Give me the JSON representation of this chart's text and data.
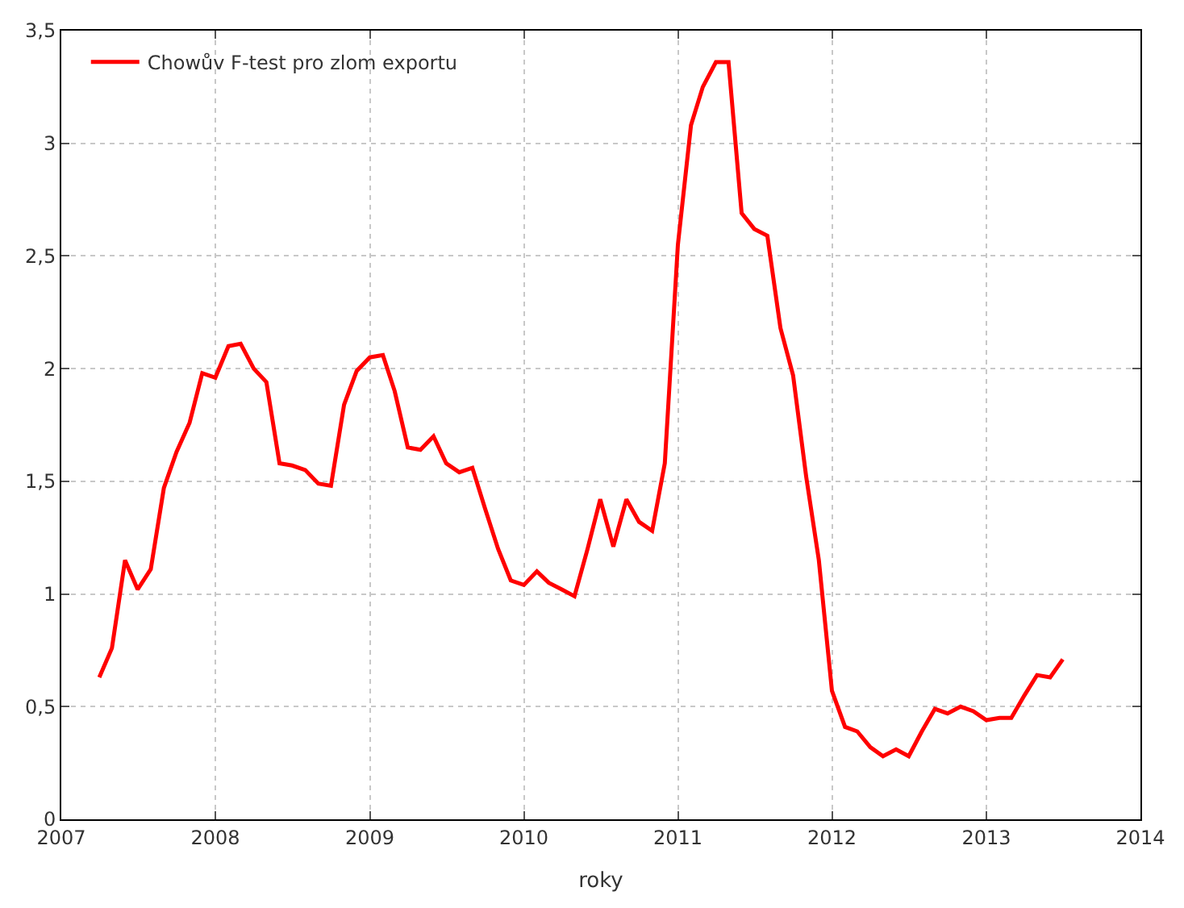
{
  "chart_data": {
    "type": "line",
    "xlabel": "roky",
    "x": [
      "2007-04",
      "2007-05",
      "2007-06",
      "2007-07",
      "2007-08",
      "2007-09",
      "2007-10",
      "2007-11",
      "2007-12",
      "2008-01",
      "2008-02",
      "2008-03",
      "2008-04",
      "2008-05",
      "2008-06",
      "2008-07",
      "2008-08",
      "2008-09",
      "2008-10",
      "2008-11",
      "2008-12",
      "2009-01",
      "2009-02",
      "2009-03",
      "2009-04",
      "2009-05",
      "2009-06",
      "2009-07",
      "2009-08",
      "2009-09",
      "2009-10",
      "2009-11",
      "2009-12",
      "2010-01",
      "2010-02",
      "2010-03",
      "2010-04",
      "2010-05",
      "2010-06",
      "2010-07",
      "2010-08",
      "2010-09",
      "2010-10",
      "2010-11",
      "2010-12",
      "2011-01",
      "2011-02",
      "2011-03",
      "2011-04",
      "2011-05",
      "2011-06",
      "2011-07",
      "2011-08",
      "2011-09",
      "2011-10",
      "2011-11",
      "2011-12",
      "2012-01",
      "2012-02",
      "2012-03",
      "2012-04",
      "2012-05",
      "2012-06",
      "2012-07",
      "2012-08",
      "2012-09",
      "2012-10",
      "2012-11",
      "2012-12",
      "2013-01",
      "2013-02",
      "2013-03",
      "2013-04",
      "2013-05",
      "2013-06",
      "2013-07"
    ],
    "series": [
      {
        "name": "Chowův F-test pro zlom exportu",
        "color": "#ff0000",
        "values": [
          0.63,
          0.76,
          1.15,
          1.02,
          1.11,
          1.47,
          1.63,
          1.76,
          1.98,
          1.96,
          2.1,
          2.11,
          2.0,
          1.94,
          1.58,
          1.57,
          1.55,
          1.49,
          1.48,
          1.84,
          1.99,
          2.05,
          2.06,
          1.9,
          1.65,
          1.64,
          1.7,
          1.58,
          1.54,
          1.56,
          1.38,
          1.2,
          1.06,
          1.04,
          1.1,
          1.05,
          1.02,
          0.99,
          1.2,
          1.42,
          1.21,
          1.42,
          1.32,
          1.28,
          1.58,
          2.55,
          3.08,
          3.25,
          3.36,
          3.36,
          2.69,
          2.62,
          2.59,
          2.18,
          1.97,
          1.52,
          1.15,
          0.57,
          0.41,
          0.39,
          0.32,
          0.28,
          0.31,
          0.28,
          0.39,
          0.49,
          0.47,
          0.5,
          0.48,
          0.44,
          0.45,
          0.45,
          0.55,
          0.64,
          0.63,
          0.71
        ]
      }
    ],
    "xlim": [
      "2007",
      "2014"
    ],
    "xticks": [
      {
        "value": "2007",
        "label": "2007"
      },
      {
        "value": "2008",
        "label": "2008"
      },
      {
        "value": "2009",
        "label": "2009"
      },
      {
        "value": "2010",
        "label": "2010"
      },
      {
        "value": "2011",
        "label": "2011"
      },
      {
        "value": "2012",
        "label": "2012"
      },
      {
        "value": "2013",
        "label": "2013"
      },
      {
        "value": "2014",
        "label": "2014"
      }
    ],
    "ylim": [
      0,
      3.5
    ],
    "yticks": [
      {
        "value": 0,
        "label": "0"
      },
      {
        "value": 0.5,
        "label": "0,5"
      },
      {
        "value": 1,
        "label": "1"
      },
      {
        "value": 1.5,
        "label": "1,5"
      },
      {
        "value": 2,
        "label": "2"
      },
      {
        "value": 2.5,
        "label": "2,5"
      },
      {
        "value": 3,
        "label": "3"
      },
      {
        "value": 3.5,
        "label": "3,5"
      }
    ],
    "grid": true,
    "legend": "top left",
    "line_style": "solid",
    "marker": "none"
  }
}
